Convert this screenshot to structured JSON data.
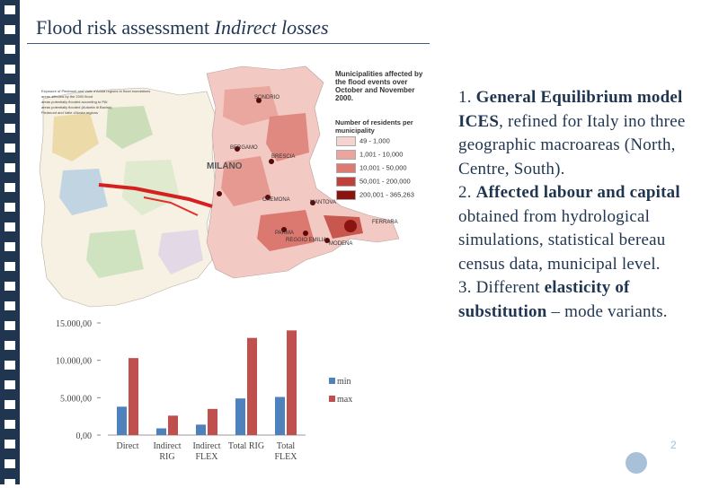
{
  "slide": {
    "title_part1": "Flood risk assessment ",
    "title_part2": "Indirect losses"
  },
  "map": {
    "legend_title": "Municipalities affected by the flood events over October and November 2000.",
    "legend_subtitle": "Number of residents per municipality",
    "legend_items": [
      {
        "label": "49 - 1,000",
        "color": "#f6d3cf"
      },
      {
        "label": "1,001 - 10,000",
        "color": "#eba59e"
      },
      {
        "label": "10,001 - 50,000",
        "color": "#de7a72"
      },
      {
        "label": "50,001 - 200,000",
        "color": "#c0403a"
      },
      {
        "label": "200,001 - 365,263",
        "color": "#8a1510"
      }
    ],
    "top_left_legend": [
      "Exposure of Piedmont and Valle d'Aosta regions to flood inundations",
      "areas affected by the 2000 flood",
      "areas potentially flooded according to PAI",
      "areas potentially flooded (Autorità di Bacino)",
      "Piedmont and Valle d'Aosta regions"
    ],
    "cities": [
      {
        "name": "SONDRIO"
      },
      {
        "name": "BERGAMO"
      },
      {
        "name": "BRESCIA"
      },
      {
        "name": "MILANO"
      },
      {
        "name": "CREMONA"
      },
      {
        "name": "MANTOVA"
      },
      {
        "name": "PARMA"
      },
      {
        "name": "REGGIO EMILIA"
      },
      {
        "name": "FERRARA"
      },
      {
        "name": "MODENA"
      }
    ]
  },
  "bullets": [
    {
      "num": "1. ",
      "bold": "General Equilibrium model ICES",
      "rest": ", refined for Italy ino three geographic macroareas (North, Centre, South)."
    },
    {
      "num": "2. ",
      "bold": "Affected labour and capital",
      "rest": " obtained from hydrological simulations, statistical bereau census data, municipal level."
    },
    {
      "num": "3. Different ",
      "bold": "elasticity of substitution",
      "rest": " – mode variants."
    }
  ],
  "chart_data": {
    "type": "bar",
    "categories": [
      "Direct",
      "Indirect RIG",
      "Indirect FLEX",
      "Total RIG",
      "Total FLEX"
    ],
    "category_lines": [
      [
        "Direct"
      ],
      [
        "Indirect",
        "RIG"
      ],
      [
        "Indirect",
        "FLEX"
      ],
      [
        "Total RIG"
      ],
      [
        "Total",
        "FLEX"
      ]
    ],
    "series": [
      {
        "name": "min",
        "color": "#4f81bd",
        "values": [
          3800,
          900,
          1400,
          4900,
          5100
        ]
      },
      {
        "name": "max",
        "color": "#c0504d",
        "values": [
          10300,
          2600,
          3500,
          13000,
          14000
        ]
      }
    ],
    "ylim": [
      0,
      15000
    ],
    "yticks": [
      "0,00",
      "5.000,00",
      "10.000,00",
      "15.000,00"
    ],
    "ytick_values": [
      0,
      5000,
      10000,
      15000
    ],
    "legend_position": "right",
    "grid": false
  }
}
